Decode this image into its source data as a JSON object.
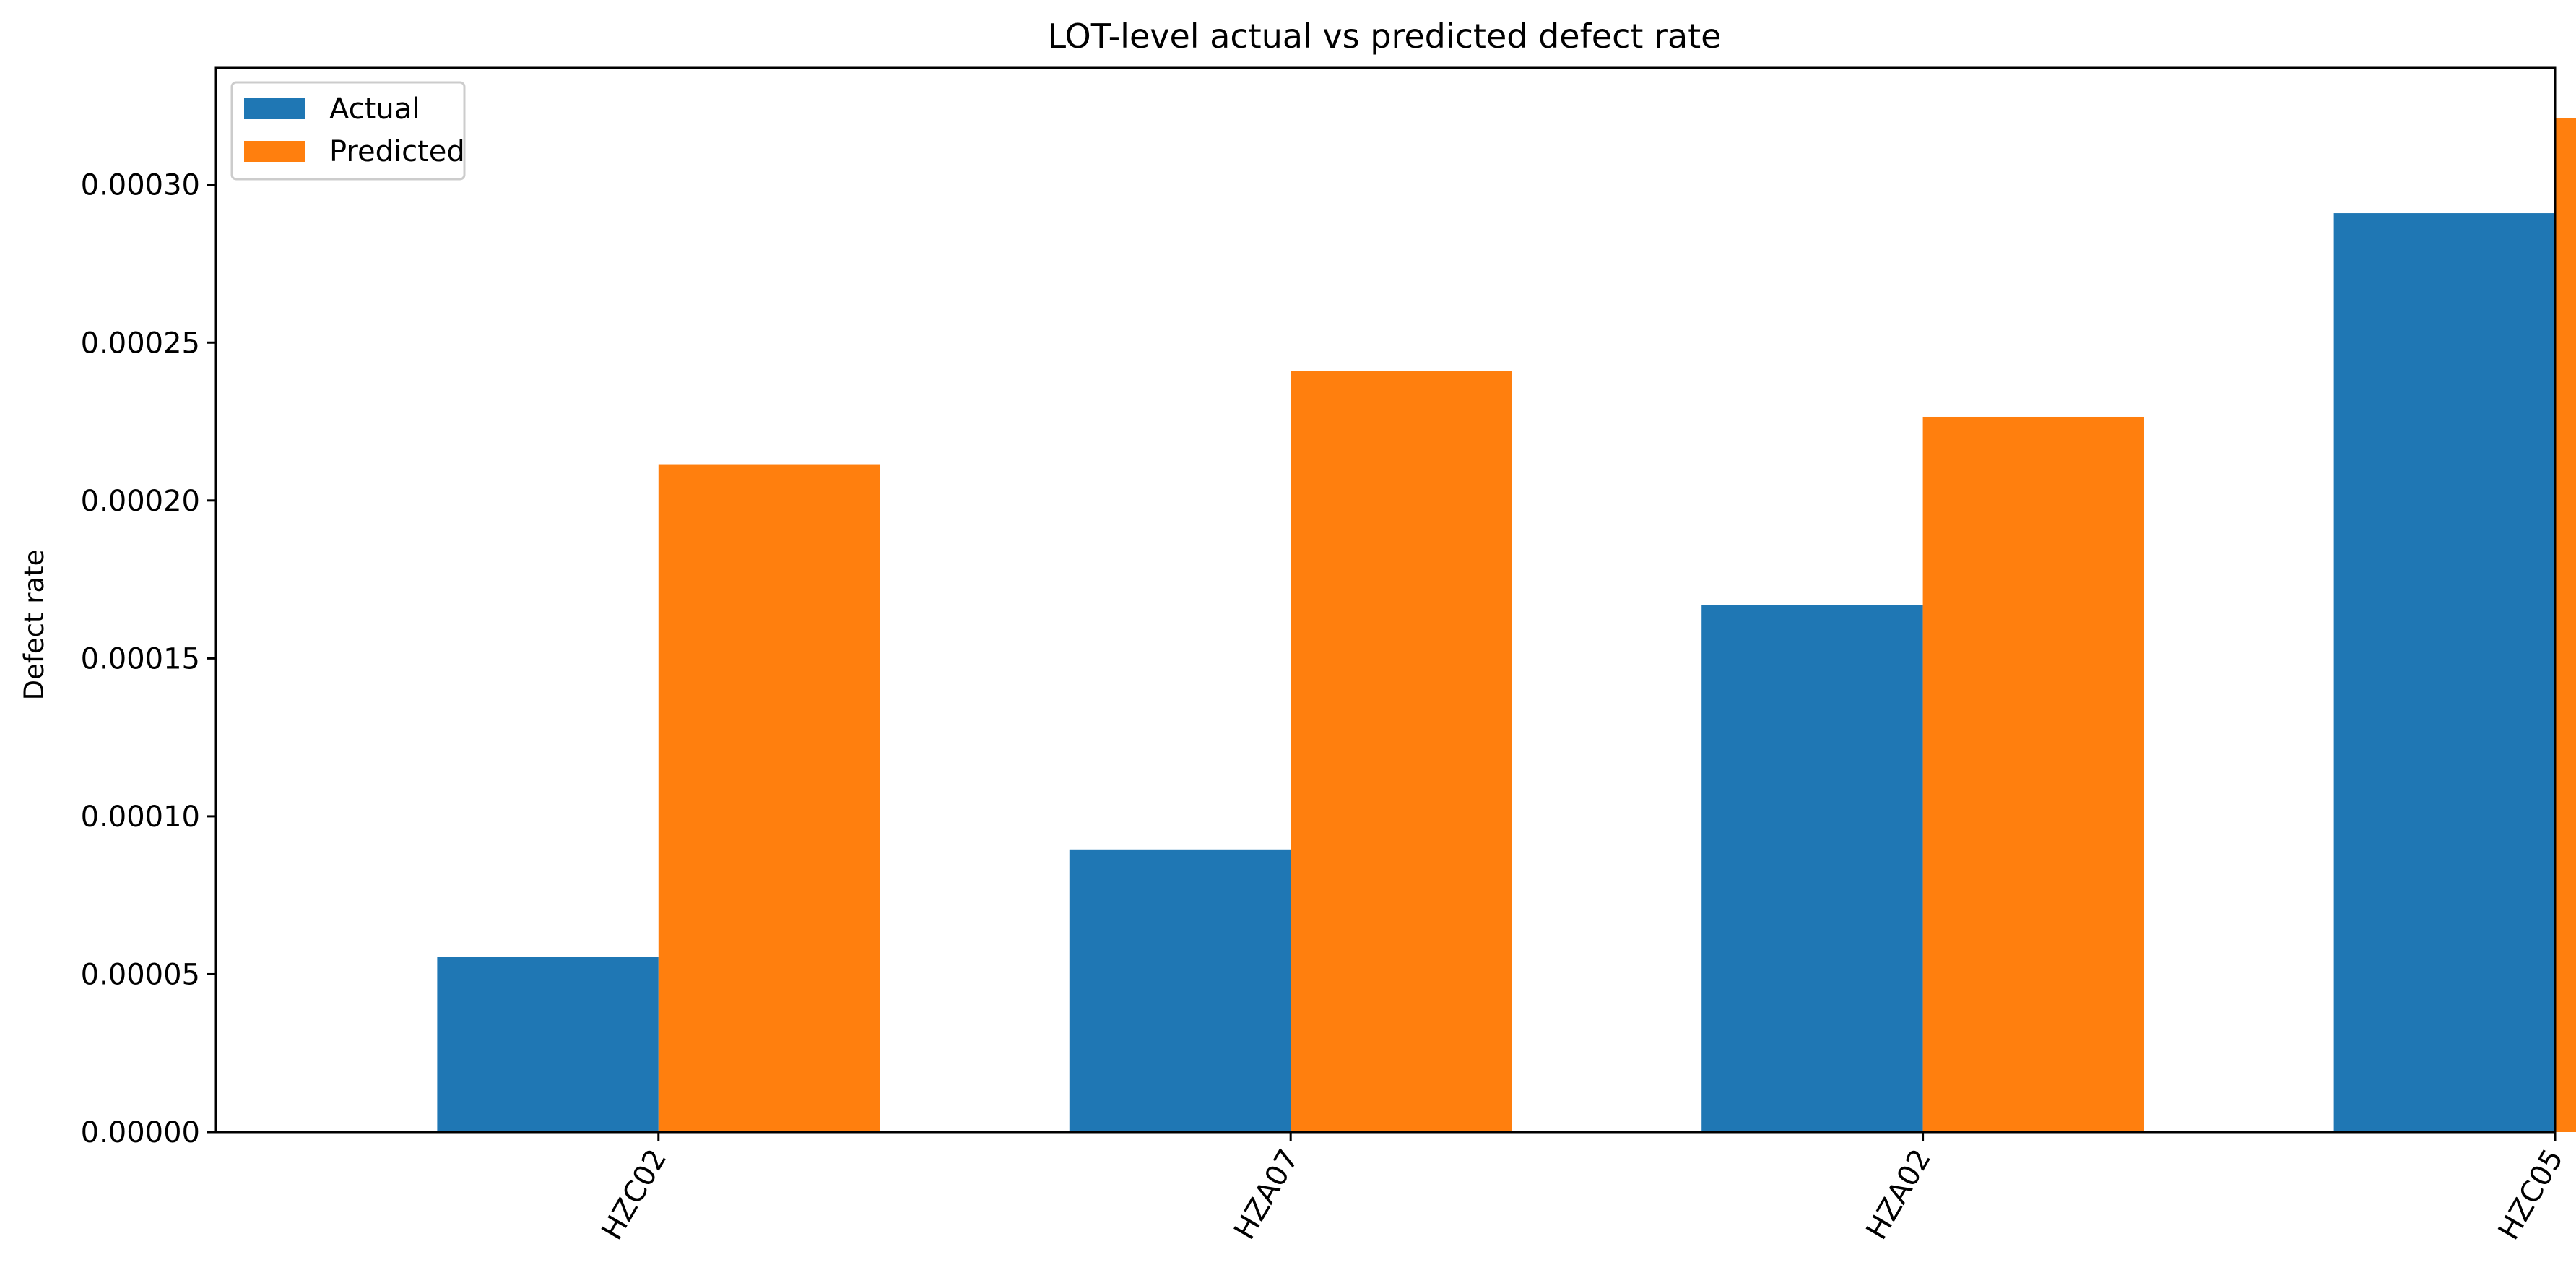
{
  "chart_data": {
    "type": "bar",
    "title": "LOT-level actual vs predicted defect rate",
    "xlabel": "",
    "ylabel": "Defect rate",
    "categories": [
      "HZC02",
      "HZA07",
      "HZA02",
      "HZC05"
    ],
    "series": [
      {
        "name": "Actual",
        "color": "#1f77b4",
        "values": [
          5.55e-05,
          8.95e-05,
          0.000167,
          0.000291
        ]
      },
      {
        "name": "Predicted",
        "color": "#ff7f0e",
        "values": [
          0.0002115,
          0.000241,
          0.0002265,
          0.000321
        ]
      }
    ],
    "ylim": [
      0,
      0.000337
    ],
    "yticks": [
      "0.00000",
      "0.00005",
      "0.00010",
      "0.00015",
      "0.00020",
      "0.00025",
      "0.00030"
    ],
    "ytick_values": [
      0,
      5e-05,
      0.0001,
      0.00015,
      0.0002,
      0.00025,
      0.0003
    ],
    "legend_position": "top-left",
    "grid": false
  }
}
